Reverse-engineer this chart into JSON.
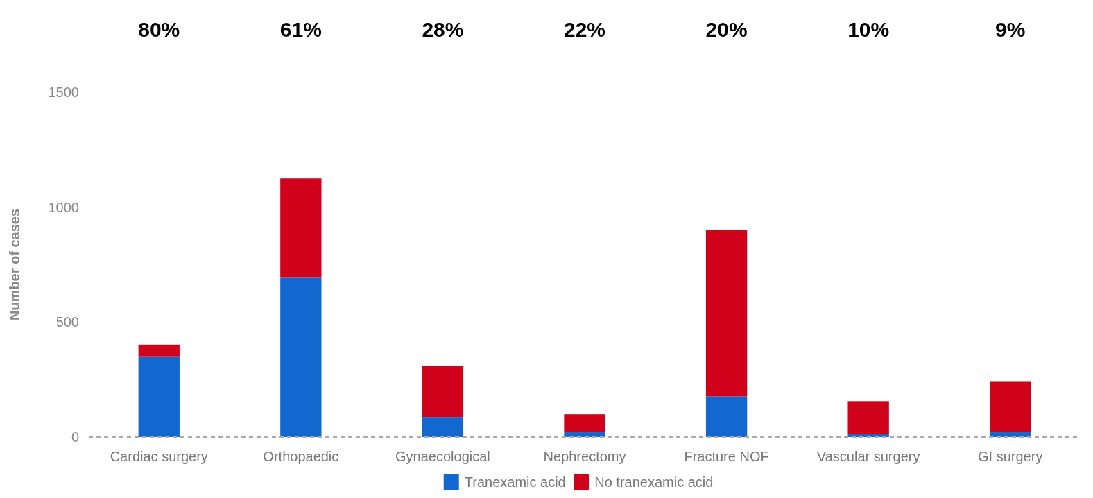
{
  "chart_data": {
    "type": "bar",
    "stacked": true,
    "ylabel": "Number of cases",
    "categories": [
      "Cardiac surgery",
      "Orthopaedic",
      "Gynaecological",
      "Nephrectomy",
      "Fracture NOF",
      "Vascular surgery",
      "GI surgery"
    ],
    "series": [
      {
        "name": "Tranexamic acid",
        "color": "#1368d0",
        "values": [
          351,
          693,
          87,
          21,
          177,
          12,
          21
        ]
      },
      {
        "name": "No tranexamic acid",
        "color": "#d0021b",
        "values": [
          51,
          432,
          222,
          78,
          723,
          144,
          219
        ]
      }
    ],
    "ylim": [
      0,
      1500
    ],
    "yticks": [
      0,
      500,
      1000,
      1500
    ],
    "grid": false,
    "legend": "bottom",
    "annotations": [
      "80%",
      "61%",
      "28%",
      "22%",
      "20%",
      "10%",
      "9%"
    ]
  }
}
